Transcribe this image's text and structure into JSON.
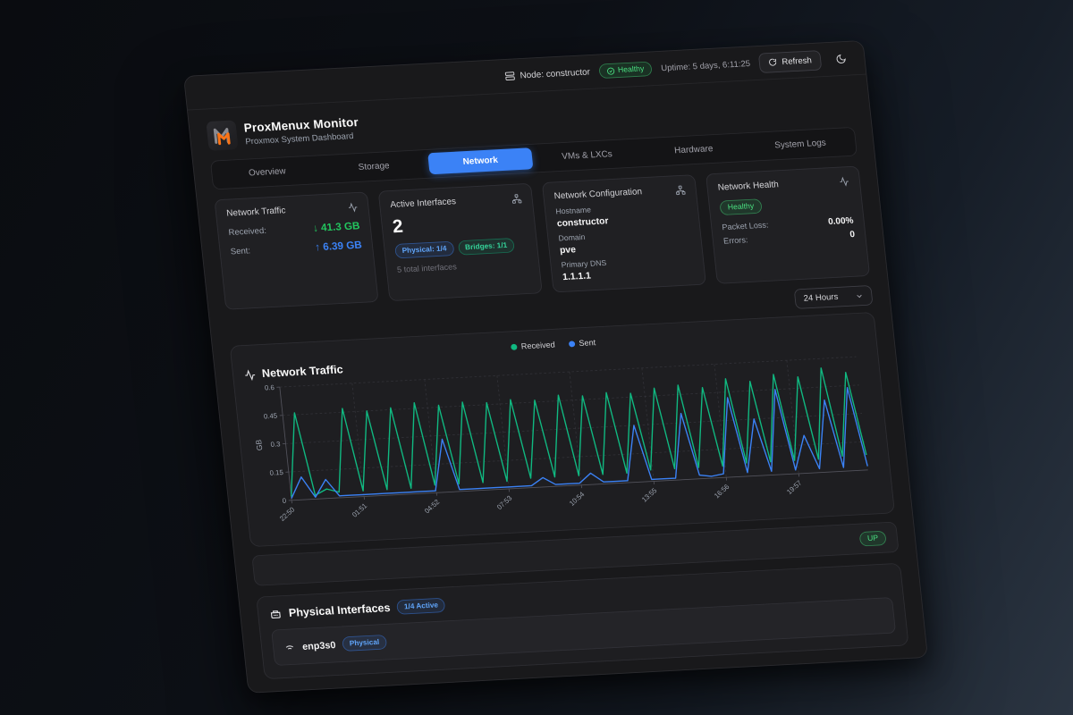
{
  "header": {
    "node_label": "Node: constructor",
    "health_badge": "Healthy",
    "uptime": "Uptime: 5 days, 6:11:25",
    "refresh_label": "Refresh"
  },
  "brand": {
    "title": "ProxMenux Monitor",
    "subtitle": "Proxmox System Dashboard"
  },
  "tabs": {
    "active": "Network",
    "items": [
      {
        "label": "Overview"
      },
      {
        "label": "Storage"
      },
      {
        "label": "Network"
      },
      {
        "label": "VMs & LXCs"
      },
      {
        "label": "Hardware"
      },
      {
        "label": "System Logs"
      }
    ]
  },
  "cards": {
    "network_traffic": {
      "title": "Network Traffic",
      "received_label": "Received:",
      "received_value": "↓ 41.3 GB",
      "sent_label": "Sent:",
      "sent_value": "↑ 6.39 GB"
    },
    "active_interfaces": {
      "title": "Active Interfaces",
      "count": "2",
      "physical_badge": "Physical: 1/4",
      "bridges_badge": "Bridges: 1/1",
      "total": "5 total interfaces"
    },
    "network_configuration": {
      "title": "Network Configuration",
      "hostname_label": "Hostname",
      "hostname": "constructor",
      "domain_label": "Domain",
      "domain": "pve",
      "dns_label": "Primary DNS",
      "dns": "1.1.1.1"
    },
    "network_health": {
      "title": "Network Health",
      "status": "Healthy",
      "packet_loss_label": "Packet Loss:",
      "packet_loss": "0.00%",
      "errors_label": "Errors:",
      "errors": "0"
    }
  },
  "time_range": {
    "selected": "24 Hours"
  },
  "chart_card": {
    "title": "Network Traffic"
  },
  "chart_data": {
    "type": "line",
    "title": "Network Traffic",
    "ylabel": "GB",
    "ylim": [
      0,
      0.6
    ],
    "yticks": [
      0,
      0.15,
      0.3,
      0.45,
      0.6
    ],
    "xtick_labels": [
      "22:50",
      "01:51",
      "04:52",
      "07:53",
      "10:54",
      "13:55",
      "16:56",
      "19:57"
    ],
    "xtick_interval_minutes": 181,
    "total_minutes": 1440,
    "step_minutes": 30,
    "grid": "dashed",
    "legend_position": "top",
    "series": [
      {
        "name": "Received",
        "color": "#10b981",
        "values": [
          0.02,
          0.46,
          0.02,
          0.05,
          0.03,
          0.47,
          0.03,
          0.45,
          0.03,
          0.46,
          0.03,
          0.48,
          0.04,
          0.46,
          0.04,
          0.47,
          0.04,
          0.46,
          0.04,
          0.47,
          0.05,
          0.46,
          0.05,
          0.48,
          0.05,
          0.47,
          0.05,
          0.48,
          0.05,
          0.47,
          0.06,
          0.49,
          0.06,
          0.5,
          0.06,
          0.48,
          0.06,
          0.52,
          0.07,
          0.5,
          0.07,
          0.53,
          0.07,
          0.51,
          0.07,
          0.55,
          0.08,
          0.52,
          0.08
        ]
      },
      {
        "name": "Sent",
        "color": "#3b82f6",
        "values": [
          0.01,
          0.12,
          0.01,
          0.1,
          0.01,
          0.01,
          0.01,
          0.01,
          0.01,
          0.01,
          0.01,
          0.01,
          0.01,
          0.28,
          0.01,
          0.01,
          0.01,
          0.01,
          0.01,
          0.01,
          0.01,
          0.05,
          0.01,
          0.01,
          0.01,
          0.06,
          0.01,
          0.01,
          0.01,
          0.3,
          0.01,
          0.01,
          0.01,
          0.35,
          0.02,
          0.01,
          0.02,
          0.42,
          0.02,
          0.3,
          0.02,
          0.45,
          0.02,
          0.2,
          0.02,
          0.38,
          0.02,
          0.44,
          0.02
        ]
      }
    ]
  },
  "interface_status_row": {
    "status_badge": "UP"
  },
  "physical_interfaces": {
    "title": "Physical Interfaces",
    "active_badge": "1/4 Active",
    "rows": [
      {
        "name": "enp3s0",
        "type_badge": "Physical"
      }
    ]
  },
  "colors": {
    "accent_blue": "#3b82f6",
    "green": "#22c55e",
    "received_line": "#10b981",
    "sent_line": "#3b82f6"
  }
}
